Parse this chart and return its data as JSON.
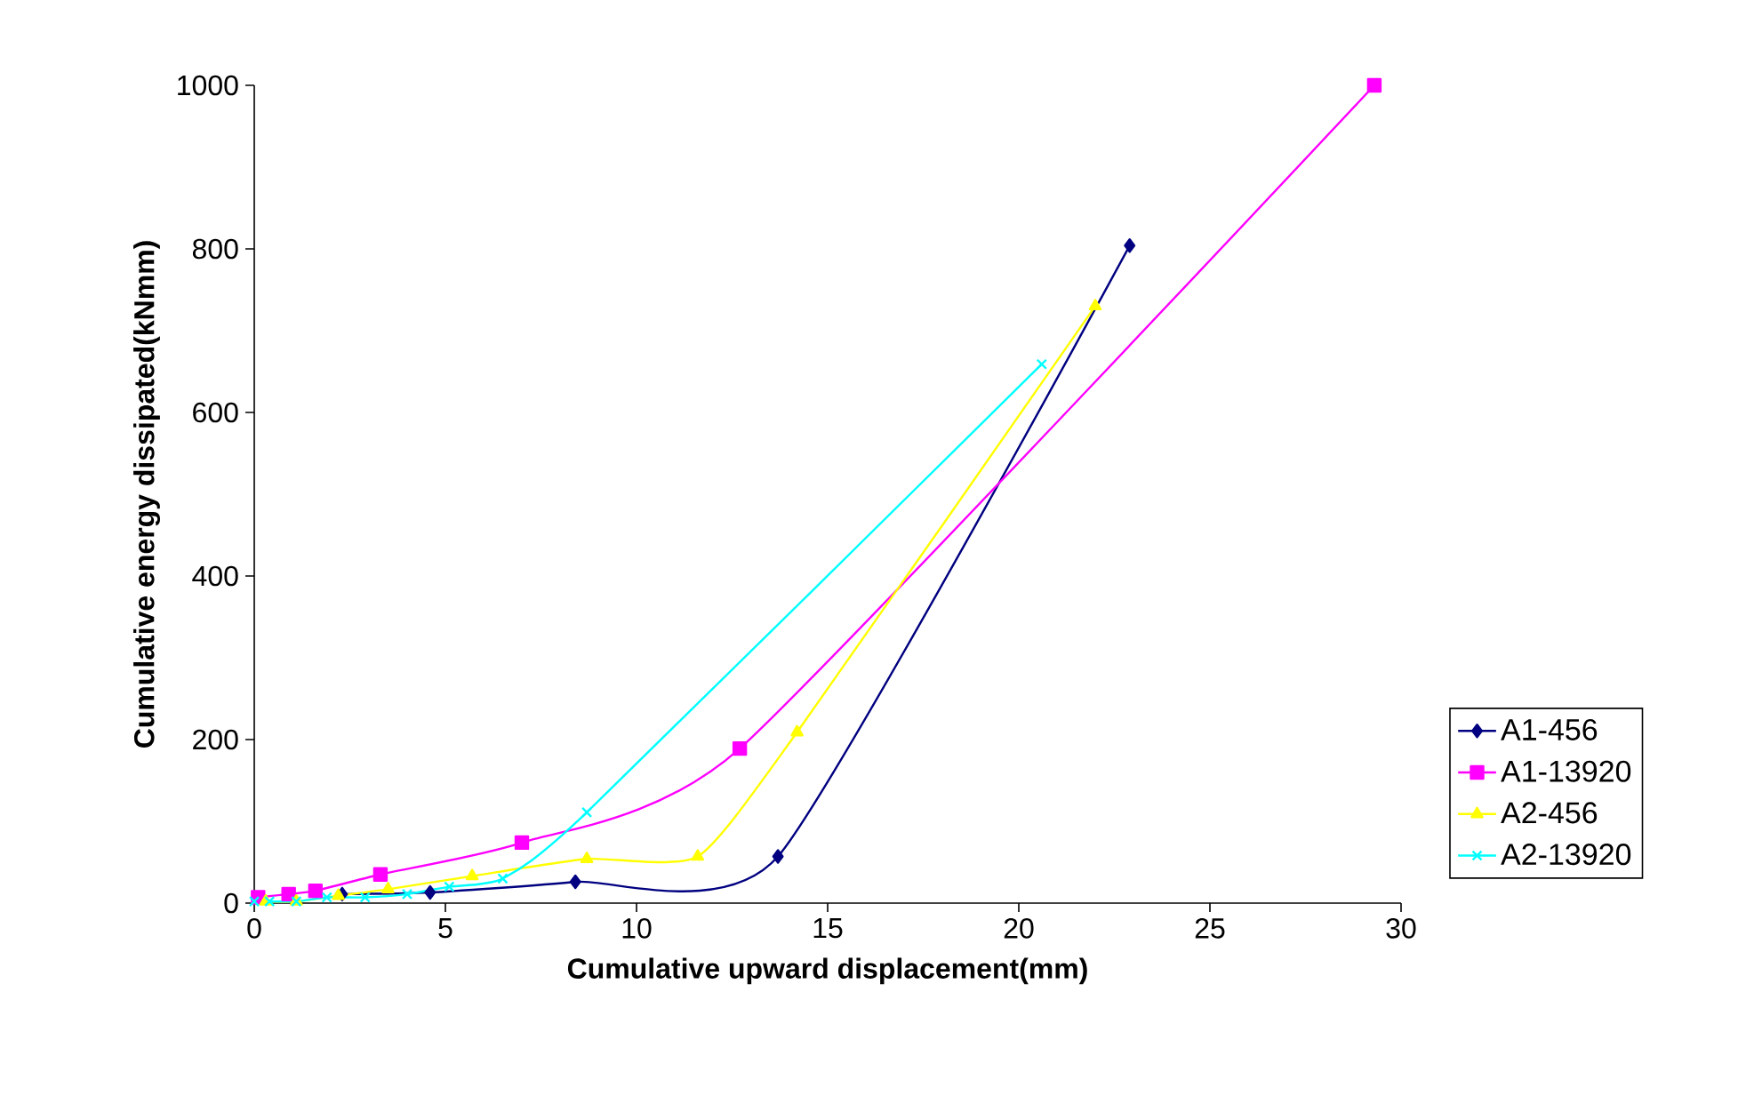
{
  "chart_data": {
    "type": "line",
    "xlabel": "Cumulative upward displacement(mm)",
    "ylabel": "Cumulative energy dissipated(kNmm)",
    "xlim": [
      0,
      30
    ],
    "ylim": [
      0,
      1000
    ],
    "xticks": [
      0,
      5,
      10,
      15,
      20,
      25,
      30
    ],
    "yticks": [
      0,
      200,
      400,
      600,
      800,
      1000
    ],
    "grid": false,
    "legend": "right",
    "line_style": "solid",
    "series": [
      {
        "name": "A1-456",
        "color": "#000080",
        "marker": "diamond",
        "x": [
          2.3,
          4.6,
          8.4,
          13.7,
          22.9
        ],
        "values": [
          11,
          13,
          26,
          57,
          804
        ]
      },
      {
        "name": "A1-13920",
        "color": "#ff00ff",
        "marker": "square",
        "x": [
          0.1,
          0.9,
          1.6,
          3.3,
          7.0,
          12.7,
          29.3
        ],
        "values": [
          7,
          11,
          15,
          35,
          74,
          189,
          1000
        ]
      },
      {
        "name": "A2-456",
        "color": "#ffff00",
        "marker": "triangle",
        "x": [
          0.3,
          1.1,
          2.2,
          3.5,
          5.7,
          8.7,
          11.6,
          14.2,
          22.0
        ],
        "values": [
          2,
          2,
          9,
          17,
          33,
          54,
          57,
          209,
          730
        ]
      },
      {
        "name": "A2-13920",
        "color": "#00ffff",
        "marker": "cross",
        "x": [
          0,
          0.4,
          1.1,
          1.9,
          2.9,
          4.0,
          5.1,
          6.5,
          8.7,
          20.6
        ],
        "values": [
          2,
          2,
          2,
          7,
          7,
          11,
          20,
          30,
          111,
          659
        ]
      }
    ]
  }
}
